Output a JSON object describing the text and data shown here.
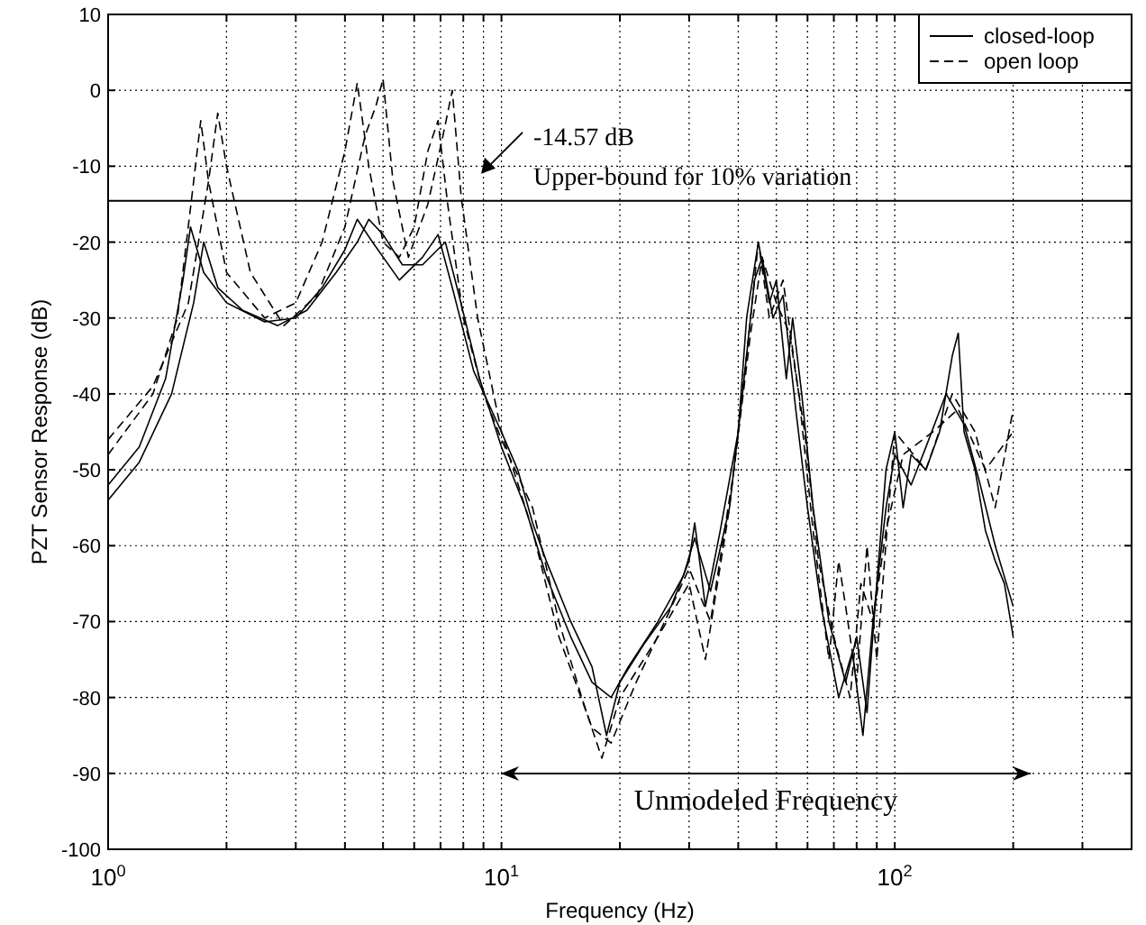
{
  "chart_data": {
    "type": "line",
    "xlabel": "Frequency (Hz)",
    "ylabel": "PZT Sensor Response (dB)",
    "log": "x",
    "xlim": [
      1,
      400
    ],
    "ylim": [
      -100,
      10
    ],
    "xticks": [
      {
        "value": 1,
        "label": "10$^{0}$"
      },
      {
        "value": 2,
        "label": null
      },
      {
        "value": 3,
        "label": null
      },
      {
        "value": 4,
        "label": null
      },
      {
        "value": 5,
        "label": null
      },
      {
        "value": 6,
        "label": null
      },
      {
        "value": 7,
        "label": null
      },
      {
        "value": 8,
        "label": null
      },
      {
        "value": 9,
        "label": null
      },
      {
        "value": 10,
        "label": "10$^{1}$"
      },
      {
        "value": 20,
        "label": null
      },
      {
        "value": 30,
        "label": null
      },
      {
        "value": 40,
        "label": null
      },
      {
        "value": 50,
        "label": null
      },
      {
        "value": 60,
        "label": null
      },
      {
        "value": 70,
        "label": null
      },
      {
        "value": 80,
        "label": null
      },
      {
        "value": 90,
        "label": null
      },
      {
        "value": 100,
        "label": "10$^{2}$"
      },
      {
        "value": 200,
        "label": null
      },
      {
        "value": 300,
        "label": null
      }
    ],
    "yticks": [
      -100,
      -90,
      -80,
      -70,
      -60,
      -50,
      -40,
      -30,
      -20,
      -10,
      0,
      10
    ],
    "grid": true,
    "legend": "top right",
    "series": [
      {
        "name": "closed-loop",
        "color": "#000000",
        "line_style": "solid",
        "x": [
          1,
          1.2,
          1.4,
          1.55,
          1.62,
          1.75,
          2,
          2.5,
          3,
          3.5,
          4,
          4.3,
          4.7,
          5.5,
          6.3,
          6.9,
          7.5,
          8.5,
          10,
          11,
          12,
          13,
          15,
          17,
          18.5,
          20,
          23,
          27,
          30,
          31,
          33,
          36,
          40,
          42,
          45,
          48,
          50,
          53,
          55,
          58,
          62,
          68,
          75,
          80,
          85,
          90,
          95,
          100,
          105,
          110,
          120,
          130,
          140,
          145,
          150,
          160,
          170,
          180,
          190,
          200
        ],
        "values": [
          -52,
          -47,
          -38,
          -25,
          -18,
          -24,
          -28,
          -30.5,
          -30,
          -26,
          -21,
          -17,
          -20,
          -25,
          -22,
          -19,
          -26,
          -37,
          -45,
          -50,
          -57,
          -62,
          -70,
          -76,
          -85,
          -78,
          -73,
          -68,
          -62,
          -57,
          -68,
          -58,
          -45,
          -30,
          -20,
          -28,
          -25,
          -38,
          -30,
          -40,
          -55,
          -70,
          -78,
          -72,
          -82,
          -65,
          -50,
          -45,
          -55,
          -48,
          -50,
          -45,
          -35,
          -32,
          -45,
          -50,
          -58,
          -62,
          -65,
          -72
        ]
      },
      {
        "color": "#000000",
        "line_style": "solid",
        "x": [
          1,
          1.2,
          1.45,
          1.65,
          1.75,
          1.9,
          2.2,
          2.7,
          3.2,
          3.8,
          4.3,
          4.6,
          5,
          5.6,
          6.3,
          7.2,
          7.8,
          8.8,
          10,
          11.5,
          13,
          15,
          17,
          19,
          21,
          25,
          29,
          31,
          34,
          38,
          41,
          44,
          46,
          49,
          52,
          56,
          60,
          65,
          72,
          78,
          83,
          88,
          95,
          100,
          110,
          120,
          135,
          150,
          165,
          180,
          200
        ],
        "values": [
          -54,
          -49,
          -40,
          -28,
          -20,
          -26,
          -29,
          -31,
          -29,
          -24,
          -20,
          -17,
          -19,
          -23,
          -23,
          -20,
          -27,
          -38,
          -47,
          -55,
          -64,
          -72,
          -78,
          -80,
          -76,
          -70,
          -64,
          -59,
          -66,
          -55,
          -40,
          -25,
          -22,
          -30,
          -27,
          -42,
          -55,
          -68,
          -80,
          -74,
          -85,
          -70,
          -55,
          -48,
          -52,
          -47,
          -40,
          -44,
          -52,
          -60,
          -68
        ]
      },
      {
        "name": "open loop",
        "color": "#000000",
        "line_style": "dashed",
        "x": [
          1,
          1.3,
          1.5,
          1.65,
          1.72,
          1.8,
          2,
          2.5,
          3,
          3.5,
          4,
          4.3,
          4.6,
          5,
          5.5,
          6,
          6.5,
          6.9,
          7.3,
          8,
          9,
          10,
          12,
          14,
          16,
          18,
          20,
          25,
          30,
          33,
          38,
          42,
          45,
          48,
          52,
          57,
          62,
          68,
          72,
          75,
          80,
          85,
          90,
          100,
          120,
          140,
          160,
          180,
          200
        ],
        "values": [
          -48,
          -40,
          -30,
          -12,
          -4,
          -12,
          -24,
          -30,
          -28,
          -20,
          -8,
          1,
          -10,
          -20,
          -22,
          -18,
          -8,
          -4,
          -15,
          -30,
          -40,
          -46,
          -55,
          -70,
          -80,
          -88,
          -80,
          -72,
          -65,
          -75,
          -55,
          -35,
          -20,
          -30,
          -25,
          -40,
          -58,
          -75,
          -62,
          -68,
          -78,
          -60,
          -75,
          -45,
          -50,
          -40,
          -45,
          -55,
          -42
        ]
      },
      {
        "color": "#000000",
        "line_style": "dashed",
        "x": [
          1,
          1.3,
          1.6,
          1.8,
          1.9,
          2,
          2.3,
          2.8,
          3.4,
          4,
          4.5,
          4.8,
          5,
          5.3,
          5.8,
          6.5,
          7.1,
          7.5,
          7.9,
          8.7,
          10,
          12,
          14,
          17,
          19,
          22,
          26,
          30,
          34,
          39,
          43,
          46,
          50,
          54,
          59,
          64,
          70,
          77,
          82,
          88,
          95,
          105,
          125,
          145,
          170,
          200
        ],
        "values": [
          -46,
          -39,
          -28,
          -12,
          -3,
          -10,
          -24,
          -31,
          -27,
          -18,
          -6,
          -2,
          1.5,
          -12,
          -22,
          -15,
          -6,
          0,
          -14,
          -30,
          -45,
          -58,
          -72,
          -84,
          -86,
          -78,
          -70,
          -63,
          -70,
          -50,
          -32,
          -22,
          -28,
          -32,
          -45,
          -62,
          -72,
          -80,
          -65,
          -70,
          -58,
          -48,
          -45,
          -42,
          -50,
          -45
        ]
      }
    ],
    "ref_lines": [
      {
        "axis": "y",
        "value": -14.57,
        "color": "#000000",
        "label": "Upper-bound for 10% variation"
      }
    ],
    "annotations": [
      "-14.57 dB",
      "Unmodeled Frequency"
    ]
  }
}
